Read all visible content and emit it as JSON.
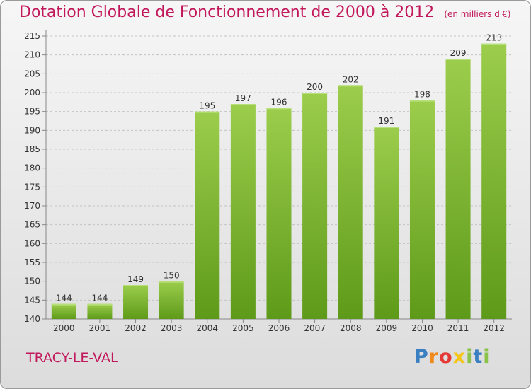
{
  "title": "Dotation Globale de Fonctionnement de 2000 à 2012",
  "subtitle": "(en milliers d'€)",
  "commune": "TRACY-LE-VAL",
  "logo": {
    "letters": [
      "P",
      "r",
      "o",
      "x",
      "i",
      "t",
      "i"
    ],
    "colors": [
      "#3a7fc2",
      "#f08a1c",
      "#e53935",
      "#f5c518",
      "#8bc34a",
      "#3a7fc2",
      "#8bc34a"
    ]
  },
  "colors": {
    "bar_light": "#9ccd4c",
    "bar_dark": "#5e9a19",
    "accent": "#c2185b"
  },
  "chart_data": {
    "type": "bar",
    "categories": [
      "2000",
      "2001",
      "2002",
      "2003",
      "2004",
      "2005",
      "2006",
      "2007",
      "2008",
      "2009",
      "2010",
      "2011",
      "2012"
    ],
    "values": [
      144,
      144,
      149,
      150,
      195,
      197,
      196,
      200,
      202,
      191,
      198,
      209,
      213
    ],
    "data_labels": [
      "144",
      "144",
      "149",
      "150",
      "195",
      "197",
      "196",
      "200",
      "202",
      "191",
      "198",
      "209",
      "213"
    ],
    "yticks": [
      140,
      145,
      150,
      155,
      160,
      165,
      170,
      175,
      180,
      185,
      190,
      195,
      200,
      205,
      210,
      215
    ],
    "ylim": [
      140,
      215
    ],
    "grid": true
  }
}
